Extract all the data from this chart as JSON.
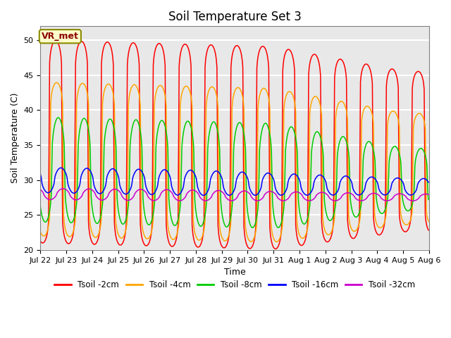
{
  "title": "Soil Temperature Set 3",
  "xlabel": "Time",
  "ylabel": "Soil Temperature (C)",
  "ylim": [
    20,
    52
  ],
  "yticks": [
    20,
    25,
    30,
    35,
    40,
    45,
    50
  ],
  "xtick_labels": [
    "Jul 22",
    "Jul 23",
    "Jul 24",
    "Jul 25",
    "Jul 26",
    "Jul 27",
    "Jul 28",
    "Jul 29",
    "Jul 30",
    "Jul 31",
    "Aug 1",
    "Aug 2",
    "Aug 3",
    "Aug 4",
    "Aug 5",
    "Aug 6"
  ],
  "series_colors": [
    "#FF0000",
    "#FFA500",
    "#00CC00",
    "#0000FF",
    "#CC00CC"
  ],
  "series_names": [
    "Tsoil -2cm",
    "Tsoil -4cm",
    "Tsoil -8cm",
    "Tsoil -16cm",
    "Tsoil -32cm"
  ],
  "annotation_text": "VR_met",
  "annotation_color": "#8B0000",
  "annotation_bg": "#FFFFCC",
  "annotation_border": "#8B8B00",
  "bg_color": "#E8E8E8",
  "grid_color": "#FFFFFF",
  "figure_bg": "#FFFFFF"
}
